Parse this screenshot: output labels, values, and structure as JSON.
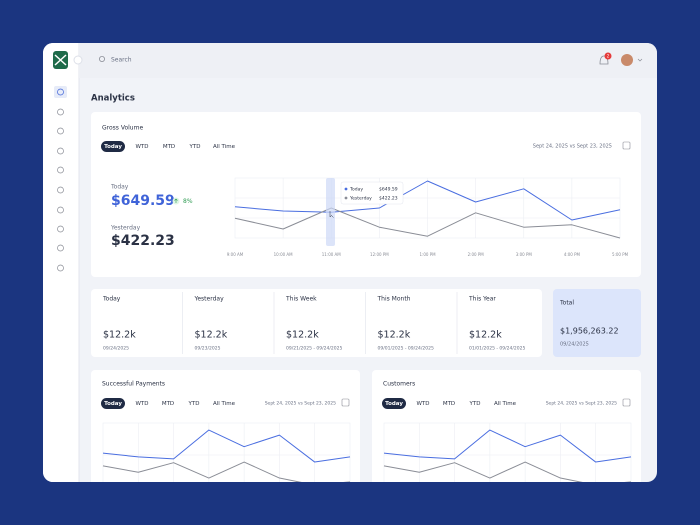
{
  "topbar": {
    "search_placeholder": "Search",
    "notification_count": "2"
  },
  "page_title": "Analytics",
  "gross_volume": {
    "title": "Gross Volume",
    "tabs": [
      "Today",
      "WTD",
      "MTD",
      "YTD",
      "All Time"
    ],
    "date_range": "Sept 24, 2025 vs Sept 23, 2025",
    "today_label": "Today",
    "today_value": "$649.59",
    "change": "8%",
    "yesterday_label": "Yesterday",
    "yesterday_value": "$422.23",
    "chart": {
      "x_labels": [
        "9:00 AM",
        "10:00 AM",
        "11:00 AM",
        "12:00 PM",
        "1:00 PM",
        "2:00 PM",
        "3:00 PM",
        "4:00 PM",
        "5:00 PM"
      ],
      "ylim": [
        0,
        100
      ],
      "series": [
        {
          "name": "Today",
          "color": "#4a6ee0",
          "values": [
            52,
            45,
            43,
            50,
            95,
            60,
            82,
            30,
            47
          ]
        },
        {
          "name": "Yesterday",
          "color": "#8a8d96",
          "values": [
            33,
            15,
            50,
            18,
            3,
            42,
            18,
            22,
            0
          ]
        }
      ]
    }
  },
  "stats": [
    {
      "label": "Today",
      "value": "$12.2k",
      "date": "09/24/2025"
    },
    {
      "label": "Yesterday",
      "value": "$12.2k",
      "date": "09/23/2025"
    },
    {
      "label": "This Week",
      "value": "$12.2k",
      "date": "09/21/2025 - 09/24/2025"
    },
    {
      "label": "This Month",
      "value": "$12.2k",
      "date": "09/01/2025 - 09/24/2025"
    },
    {
      "label": "This Year",
      "value": "$12.2k",
      "date": "01/01/2025 - 09/24/2025"
    }
  ],
  "total": {
    "label": "Total",
    "value": "$1,956,263.22",
    "date": "09/24/2025"
  },
  "cards": [
    {
      "title": "Successful Payments",
      "tabs": [
        "Today",
        "WTD",
        "MTD",
        "YTD",
        "All Time"
      ],
      "date_range": "Sept 24, 2025 vs Sept 23, 2025",
      "chart": {
        "ylim": [
          0,
          100
        ],
        "series": [
          {
            "color": "#4a6ee0",
            "values": [
              53,
              47,
              44,
              89,
              63,
              81,
              39,
              47
            ]
          },
          {
            "color": "#8a8d96",
            "values": [
              33,
              23,
              38,
              14,
              39,
              14,
              3,
              8
            ]
          }
        ]
      }
    },
    {
      "title": "Customers",
      "tabs": [
        "Today",
        "WTD",
        "MTD",
        "YTD",
        "All Time"
      ],
      "date_range": "Sept 24, 2025 vs Sept 23, 2025",
      "chart": {
        "ylim": [
          0,
          100
        ],
        "series": [
          {
            "color": "#4a6ee0",
            "values": [
              53,
              47,
              44,
              89,
              63,
              81,
              39,
              47
            ]
          },
          {
            "color": "#8a8d96",
            "values": [
              33,
              23,
              38,
              14,
              39,
              14,
              3,
              8
            ]
          }
        ]
      }
    }
  ]
}
